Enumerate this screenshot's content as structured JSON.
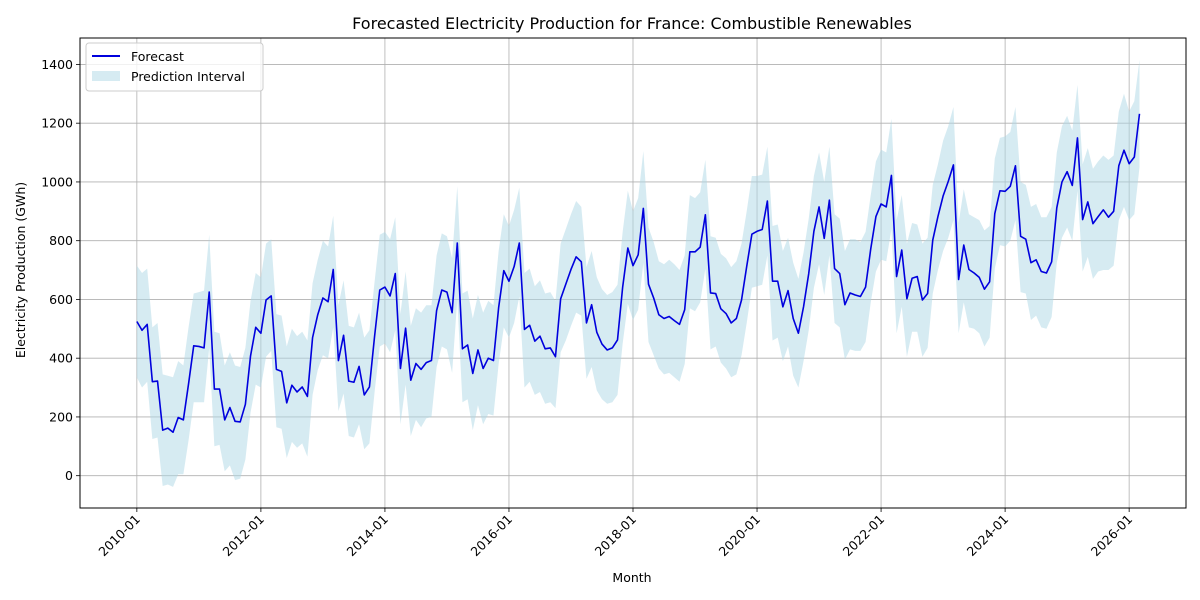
{
  "chart_data": {
    "type": "line",
    "title": "Forecasted Electricity Production for France: Combustible Renewables",
    "xlabel": "Month",
    "ylabel": "Electricity Production (GWh)",
    "x_start": "2010-01",
    "x_frequency": "monthly",
    "x_ticks": [
      "2010-01",
      "2012-01",
      "2014-01",
      "2016-01",
      "2018-01",
      "2020-01",
      "2022-01",
      "2024-01",
      "2026-01"
    ],
    "x_tick_rotation_deg": 45,
    "y_ticks": [
      0,
      200,
      400,
      600,
      800,
      1000,
      1200,
      1400
    ],
    "xlim": [
      "2009-02",
      "2026-12"
    ],
    "ylim": [
      -110,
      1490
    ],
    "grid": true,
    "legend_position": "top-left",
    "colors": {
      "forecast": "#0000dd",
      "interval_fill": "#add8e6",
      "interval_opacity": 0.5
    },
    "series": [
      {
        "name": "Forecast",
        "role": "line",
        "values": [
          525,
          495,
          515,
          320,
          322,
          155,
          162,
          148,
          198,
          190,
          312,
          442,
          440,
          435,
          625,
          295,
          295,
          190,
          232,
          185,
          183,
          243,
          408,
          505,
          485,
          598,
          612,
          362,
          355,
          248,
          308,
          285,
          302,
          270,
          470,
          548,
          605,
          592,
          702,
          392,
          478,
          322,
          318,
          372,
          275,
          302,
          475,
          632,
          642,
          612,
          688,
          365,
          502,
          325,
          382,
          362,
          385,
          392,
          562,
          632,
          625,
          555,
          792,
          432,
          445,
          348,
          428,
          365,
          400,
          392,
          572,
          698,
          662,
          712,
          792,
          498,
          512,
          458,
          475,
          432,
          435,
          405,
          602,
          652,
          702,
          745,
          728,
          520,
          582,
          488,
          448,
          428,
          435,
          462,
          642,
          775,
          715,
          752,
          910,
          652,
          605,
          548,
          535,
          542,
          528,
          515,
          565,
          762,
          762,
          778,
          888,
          622,
          620,
          568,
          552,
          520,
          535,
          598,
          712,
          822,
          832,
          838,
          935,
          662,
          662,
          575,
          630,
          535,
          485,
          575,
          688,
          832,
          915,
          808,
          938,
          705,
          688,
          582,
          622,
          615,
          610,
          642,
          772,
          882,
          925,
          915,
          1022,
          678,
          768,
          602,
          672,
          678,
          598,
          620,
          802,
          882,
          952,
          1002,
          1058,
          668,
          785,
          702,
          690,
          675,
          635,
          660,
          892,
          970,
          968,
          985,
          1055,
          815,
          805,
          725,
          735,
          695,
          690,
          728,
          912,
          1000,
          1035,
          988,
          1150,
          872,
          932,
          858,
          882,
          905,
          880,
          900,
          1055,
          1108,
          1062,
          1085,
          1232
        ]
      },
      {
        "name": "Prediction Interval",
        "role": "band",
        "lower": [
          335,
          300,
          320,
          125,
          130,
          -35,
          -30,
          -38,
          5,
          5,
          120,
          250,
          250,
          250,
          435,
          100,
          105,
          15,
          35,
          -15,
          -10,
          55,
          215,
          310,
          300,
          405,
          425,
          165,
          160,
          60,
          115,
          95,
          110,
          65,
          275,
          360,
          410,
          400,
          505,
          220,
          280,
          135,
          130,
          175,
          90,
          110,
          285,
          440,
          450,
          420,
          495,
          175,
          310,
          135,
          190,
          165,
          195,
          200,
          370,
          440,
          430,
          350,
          600,
          250,
          260,
          155,
          240,
          175,
          210,
          205,
          380,
          505,
          470,
          520,
          610,
          300,
          320,
          275,
          285,
          245,
          250,
          230,
          420,
          460,
          510,
          555,
          545,
          330,
          370,
          290,
          260,
          245,
          250,
          275,
          450,
          585,
          530,
          565,
          725,
          455,
          410,
          365,
          345,
          350,
          335,
          320,
          380,
          570,
          560,
          590,
          705,
          430,
          440,
          385,
          365,
          335,
          345,
          410,
          520,
          640,
          645,
          650,
          750,
          460,
          470,
          390,
          440,
          340,
          300,
          390,
          495,
          640,
          720,
          615,
          750,
          520,
          505,
          395,
          430,
          425,
          425,
          455,
          590,
          695,
          735,
          730,
          840,
          485,
          575,
          405,
          490,
          490,
          405,
          435,
          620,
          700,
          765,
          810,
          870,
          485,
          590,
          505,
          500,
          485,
          440,
          470,
          705,
          785,
          780,
          800,
          870,
          625,
          620,
          530,
          545,
          505,
          500,
          540,
          725,
          810,
          845,
          800,
          970,
          695,
          745,
          670,
          695,
          700,
          700,
          715,
          870,
          915,
          870,
          890,
          1050
        ],
        "upper": [
          715,
          690,
          705,
          505,
          520,
          345,
          340,
          335,
          390,
          375,
          505,
          620,
          625,
          630,
          820,
          490,
          485,
          375,
          420,
          375,
          370,
          435,
          595,
          690,
          675,
          790,
          805,
          550,
          545,
          440,
          500,
          475,
          490,
          460,
          655,
          735,
          800,
          780,
          885,
          580,
          665,
          510,
          505,
          555,
          470,
          495,
          660,
          820,
          830,
          805,
          880,
          550,
          695,
          510,
          570,
          555,
          580,
          580,
          750,
          825,
          815,
          740,
          985,
          620,
          630,
          535,
          615,
          555,
          595,
          580,
          765,
          890,
          850,
          905,
          980,
          690,
          705,
          645,
          665,
          620,
          625,
          595,
          790,
          840,
          890,
          935,
          915,
          710,
          765,
          675,
          635,
          615,
          625,
          650,
          830,
          970,
          900,
          945,
          1105,
          845,
          795,
          730,
          720,
          735,
          720,
          700,
          750,
          955,
          945,
          965,
          1075,
          815,
          810,
          755,
          740,
          710,
          730,
          790,
          900,
          1020,
          1020,
          1025,
          1120,
          850,
          855,
          765,
          810,
          725,
          670,
          760,
          875,
          1020,
          1100,
          1000,
          1120,
          890,
          875,
          765,
          805,
          805,
          795,
          830,
          955,
          1070,
          1110,
          1100,
          1215,
          870,
          955,
          790,
          860,
          855,
          790,
          810,
          990,
          1060,
          1140,
          1190,
          1255,
          860,
          975,
          890,
          880,
          870,
          835,
          850,
          1080,
          1150,
          1155,
          1170,
          1255,
          1000,
          990,
          915,
          925,
          880,
          880,
          915,
          1100,
          1190,
          1225,
          1175,
          1330,
          1060,
          1115,
          1045,
          1070,
          1090,
          1075,
          1090,
          1240,
          1300,
          1240,
          1275,
          1415
        ]
      }
    ]
  }
}
